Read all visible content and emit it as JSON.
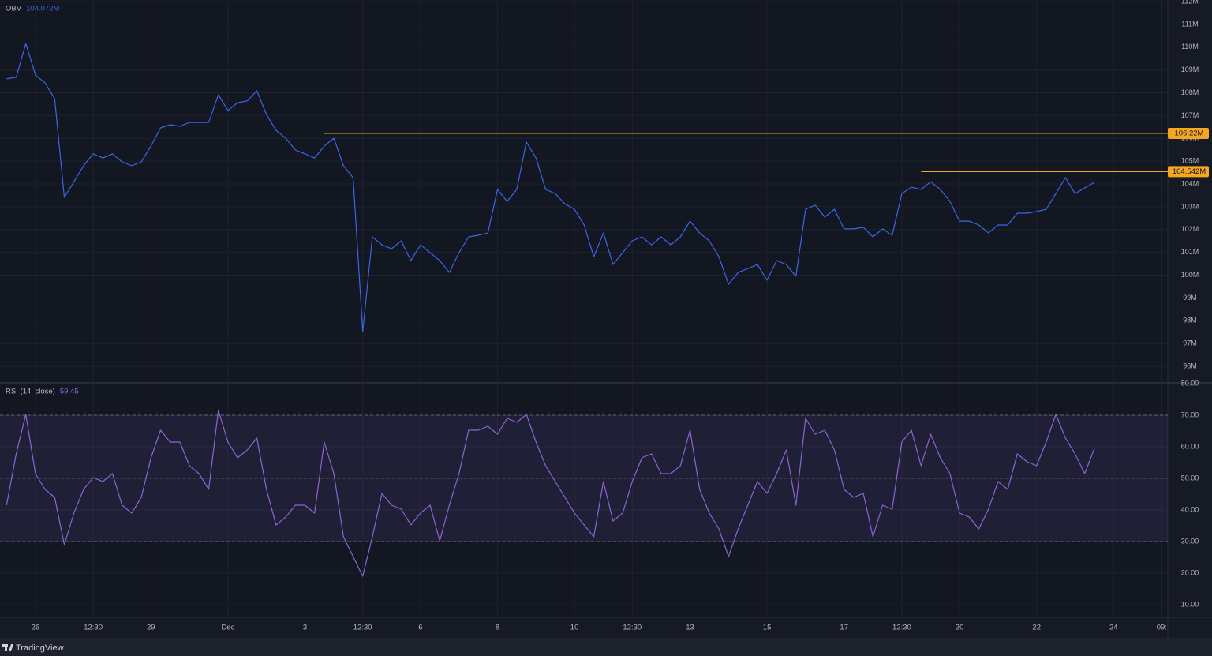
{
  "chart_data": [
    {
      "type": "line",
      "title": "OBV",
      "legend_value": "104.072M",
      "color": "#3a66e8",
      "values": [
        108.61,
        108.68,
        110.16,
        108.78,
        108.43,
        107.74,
        103.41,
        104.1,
        104.8,
        105.32,
        105.14,
        105.32,
        104.97,
        104.8,
        104.97,
        105.66,
        106.46,
        106.6,
        106.53,
        106.7,
        106.7,
        106.7,
        107.91,
        107.22,
        107.57,
        107.64,
        108.09,
        107.05,
        106.35,
        106.01,
        105.49,
        105.32,
        105.14,
        105.66,
        106.01,
        104.8,
        104.28,
        97.52,
        101.68,
        101.33,
        101.16,
        101.51,
        100.64,
        101.33,
        100.99,
        100.64,
        100.12,
        100.99,
        101.68,
        101.75,
        101.85,
        103.76,
        103.24,
        103.76,
        105.84,
        105.14,
        103.76,
        103.58,
        103.13,
        102.89,
        102.2,
        100.81,
        101.85,
        100.47,
        100.99,
        101.51,
        101.68,
        101.33,
        101.68,
        101.33,
        101.68,
        102.37,
        101.85,
        101.51,
        100.81,
        99.6,
        100.12,
        100.29,
        100.47,
        99.78,
        100.64,
        100.47,
        99.95,
        102.89,
        103.07,
        102.55,
        102.89,
        102.03,
        102.03,
        102.1,
        101.68,
        102.03,
        101.75,
        103.58,
        103.86,
        103.76,
        104.1,
        103.76,
        103.24,
        102.37,
        102.37,
        102.2,
        101.85,
        102.2,
        102.2,
        102.72,
        102.72,
        102.79,
        102.89,
        103.58,
        104.28,
        103.58,
        103.83,
        104.072,
        null,
        null,
        null,
        null,
        null,
        null,
        null
      ],
      "ylim": [
        95.31,
        112.07
      ],
      "yticks": [
        {
          "value": 96,
          "label": "96M"
        },
        {
          "value": 97,
          "label": "97M"
        },
        {
          "value": 98,
          "label": "98M"
        },
        {
          "value": 99,
          "label": "99M"
        },
        {
          "value": 100,
          "label": "100M"
        },
        {
          "value": 101,
          "label": "101M"
        },
        {
          "value": 102,
          "label": "102M"
        },
        {
          "value": 103,
          "label": "103M"
        },
        {
          "value": 104,
          "label": "104M"
        },
        {
          "value": 105,
          "label": "105M"
        },
        {
          "value": 106,
          "label": "106M"
        },
        {
          "value": 107,
          "label": "107M"
        },
        {
          "value": 108,
          "label": "108M"
        },
        {
          "value": 109,
          "label": "109M"
        },
        {
          "value": 110,
          "label": "110M"
        },
        {
          "value": 111,
          "label": "111M"
        },
        {
          "value": 112,
          "label": "112M"
        }
      ],
      "hlines": [
        {
          "value": 106.22,
          "label": "106.22M",
          "from": 33,
          "color": "#f5a623"
        },
        {
          "value": 104.542,
          "label": "104.542M",
          "from": 95,
          "color": "#f5a623"
        }
      ],
      "grid": true
    },
    {
      "type": "line",
      "title": "RSI (14, close)",
      "legend_value": "59.45",
      "color": "#8e63d6",
      "categories": [
        null,
        null,
        null,
        "26",
        null,
        null,
        null,
        null,
        null,
        "12:30",
        null,
        null,
        null,
        null,
        null,
        "29",
        null,
        null,
        null,
        null,
        null,
        null,
        null,
        "Dec",
        null,
        null,
        null,
        null,
        null,
        null,
        null,
        "3",
        null,
        null,
        null,
        null,
        null,
        "12:30",
        null,
        null,
        null,
        null,
        null,
        "6",
        null,
        null,
        null,
        null,
        null,
        null,
        null,
        "8",
        null,
        null,
        null,
        null,
        null,
        null,
        null,
        "10",
        null,
        null,
        null,
        null,
        null,
        "12:30",
        null,
        null,
        null,
        null,
        null,
        "13",
        null,
        null,
        null,
        null,
        null,
        null,
        null,
        "15",
        null,
        null,
        null,
        null,
        null,
        null,
        null,
        "17",
        null,
        null,
        null,
        null,
        null,
        "12:30",
        null,
        null,
        null,
        null,
        null,
        "20",
        null,
        null,
        null,
        null,
        null,
        null,
        null,
        "22",
        null,
        null,
        null,
        null,
        null,
        null,
        null,
        "24",
        null,
        null,
        null,
        null,
        "09:"
      ],
      "values": [
        41.5,
        57.75,
        70.25,
        51.5,
        46.5,
        44,
        29,
        39,
        46.5,
        50.25,
        49,
        51.5,
        41.5,
        39,
        44,
        56.5,
        65.25,
        61.5,
        61.5,
        54,
        51.5,
        46.5,
        71.5,
        61.5,
        56.5,
        59,
        62.75,
        46.5,
        35.25,
        37.75,
        41.5,
        41.5,
        39,
        61.5,
        51.5,
        31.5,
        25.25,
        19,
        31.5,
        45.25,
        41.5,
        40.25,
        35.25,
        39,
        41.5,
        30.25,
        41.5,
        51.5,
        65.25,
        65.25,
        66.5,
        64,
        69,
        67.75,
        70.25,
        61.5,
        54,
        49,
        44,
        39,
        35.25,
        31.5,
        49,
        36.5,
        39,
        49,
        56.5,
        57.75,
        51.5,
        51.5,
        54,
        65.25,
        46.5,
        39,
        34,
        25.25,
        34,
        41.5,
        49,
        45.25,
        51.5,
        59,
        41.5,
        69,
        64,
        65.25,
        59,
        46.5,
        44,
        45.25,
        31.5,
        41.5,
        40.25,
        61.5,
        65.25,
        54,
        64,
        56.5,
        51.5,
        39,
        37.75,
        34,
        40.25,
        49,
        46.5,
        57.75,
        55.25,
        54,
        61.5,
        70.25,
        62.75,
        57.75,
        51.5,
        59.45,
        null,
        null,
        null,
        null,
        null,
        null,
        null
      ],
      "ylim": [
        6,
        80.25
      ],
      "yticks": [
        {
          "value": 10,
          "label": "10.00"
        },
        {
          "value": 20,
          "label": "20.00"
        },
        {
          "value": 30,
          "label": "30.00"
        },
        {
          "value": 40,
          "label": "40.00"
        },
        {
          "value": 50,
          "label": "50.00"
        },
        {
          "value": 60,
          "label": "60.00"
        },
        {
          "value": 70,
          "label": "70.00"
        },
        {
          "value": 80,
          "label": "80.00"
        }
      ],
      "band": [
        30,
        70
      ],
      "midline": 50,
      "grid": true
    }
  ],
  "footer": "TradingView"
}
